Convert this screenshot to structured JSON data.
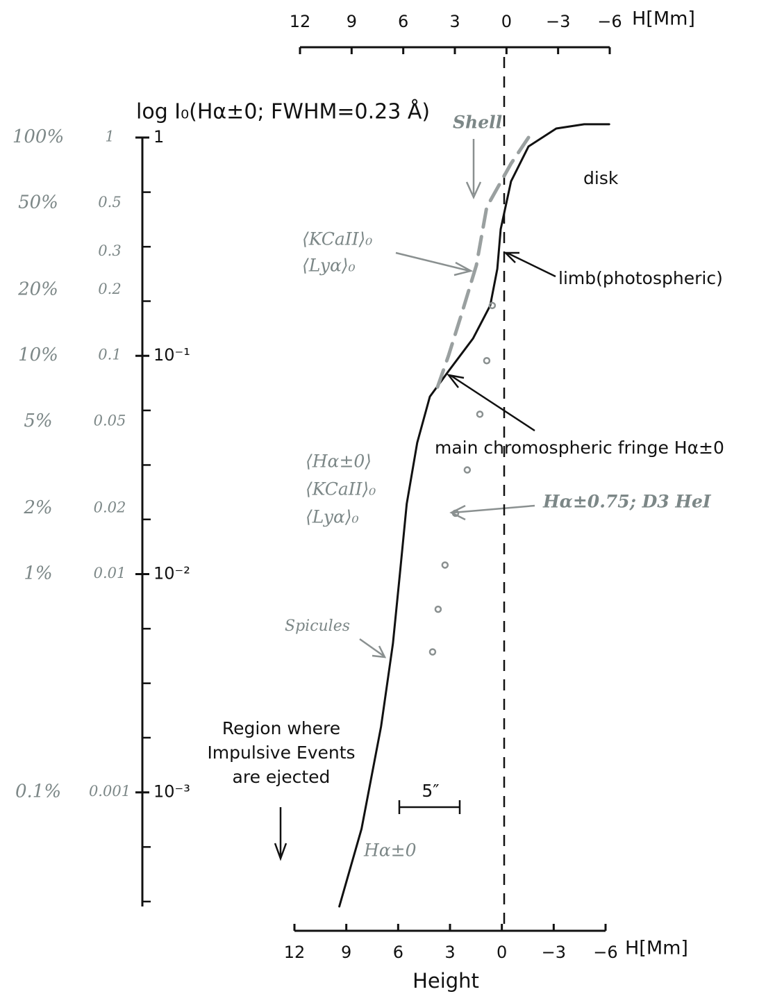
{
  "chart_data": {
    "type": "line",
    "title": "log I₀(Hα±0; FWHM=0.23 Å)",
    "x_label": "H[Mm]",
    "x_title": "Height",
    "xlim": [
      12,
      -6
    ],
    "xticks": [
      12,
      9,
      6,
      3,
      0,
      -3,
      -6
    ],
    "ylim": [
      0.0003,
      1
    ],
    "yscale": "log",
    "yticks": [
      {
        "value": 1,
        "label": "1"
      },
      {
        "value": 0.1,
        "label": "10⁻¹"
      },
      {
        "value": 0.01,
        "label": "10⁻²"
      },
      {
        "value": 0.001,
        "label": "10⁻³"
      }
    ],
    "yminorticks": [
      0.562,
      0.316,
      0.178,
      0.0562,
      0.0316,
      0.0178,
      0.00562,
      0.00316,
      0.00178,
      0.000562,
      0.000316
    ],
    "yticks_percent": [
      {
        "value": 1,
        "label": "100%"
      },
      {
        "value": 0.5,
        "label": "50%"
      },
      {
        "value": 0.2,
        "label": "20%"
      },
      {
        "value": 0.1,
        "label": "10%"
      },
      {
        "value": 0.05,
        "label": "5%"
      },
      {
        "value": 0.02,
        "label": "2%"
      },
      {
        "value": 0.01,
        "label": "1%"
      },
      {
        "value": 0.001,
        "label": "0.1%"
      }
    ],
    "yticks_decimal": [
      1,
      0.5,
      0.3,
      0.2,
      0.1,
      0.05,
      0.02,
      0.01,
      0.001
    ],
    "reference_line_x": 0,
    "legend": false,
    "series": [
      {
        "name": "Hα±0",
        "color": "#111111",
        "style": "solid",
        "x": [
          9.56,
          8.27,
          7.14,
          6.45,
          6.05,
          5.65,
          5.04,
          4.31,
          3.23,
          1.81,
          0.81,
          0.4,
          0.2,
          -0.4,
          -1.41,
          -3.02,
          -4.64,
          -6.09
        ],
        "values": [
          0.0003,
          0.00068,
          0.002,
          0.0048,
          0.01,
          0.021,
          0.04,
          0.065,
          0.085,
          0.12,
          0.17,
          0.25,
          0.38,
          0.63,
          0.91,
          1.1,
          1.15,
          1.15
        ]
      },
      {
        "name": "Hα±0.75; D3 HeI",
        "color": "#8a9090",
        "style": "dots",
        "x": [
          0.69,
          1.01,
          1.41,
          2.14,
          2.82,
          3.43,
          3.83,
          4.15
        ],
        "values": [
          0.17,
          0.095,
          0.054,
          0.03,
          0.019,
          0.011,
          0.0069,
          0.0044
        ]
      },
      {
        "name": "Shell",
        "color": "#9aa0a0",
        "style": "dashed",
        "x": [
          -1.41,
          -0.4,
          1.01,
          1.61,
          2.42,
          3.23,
          4.03
        ],
        "values": [
          1.0,
          0.76,
          0.48,
          0.26,
          0.16,
          0.1,
          0.066
        ]
      }
    ],
    "annotations": [
      "disk",
      "limb(photospheric)",
      "main chromospheric fringe Hα±0",
      "⟨KCaII⟩₀",
      "⟨Lyα⟩₀",
      "⟨Hα±0⟩",
      "⟨KCaII⟩₀",
      "⟨Lyα⟩₀",
      "Spicules",
      "Region where",
      "Impulsive Events",
      "are ejected",
      "5″"
    ]
  }
}
